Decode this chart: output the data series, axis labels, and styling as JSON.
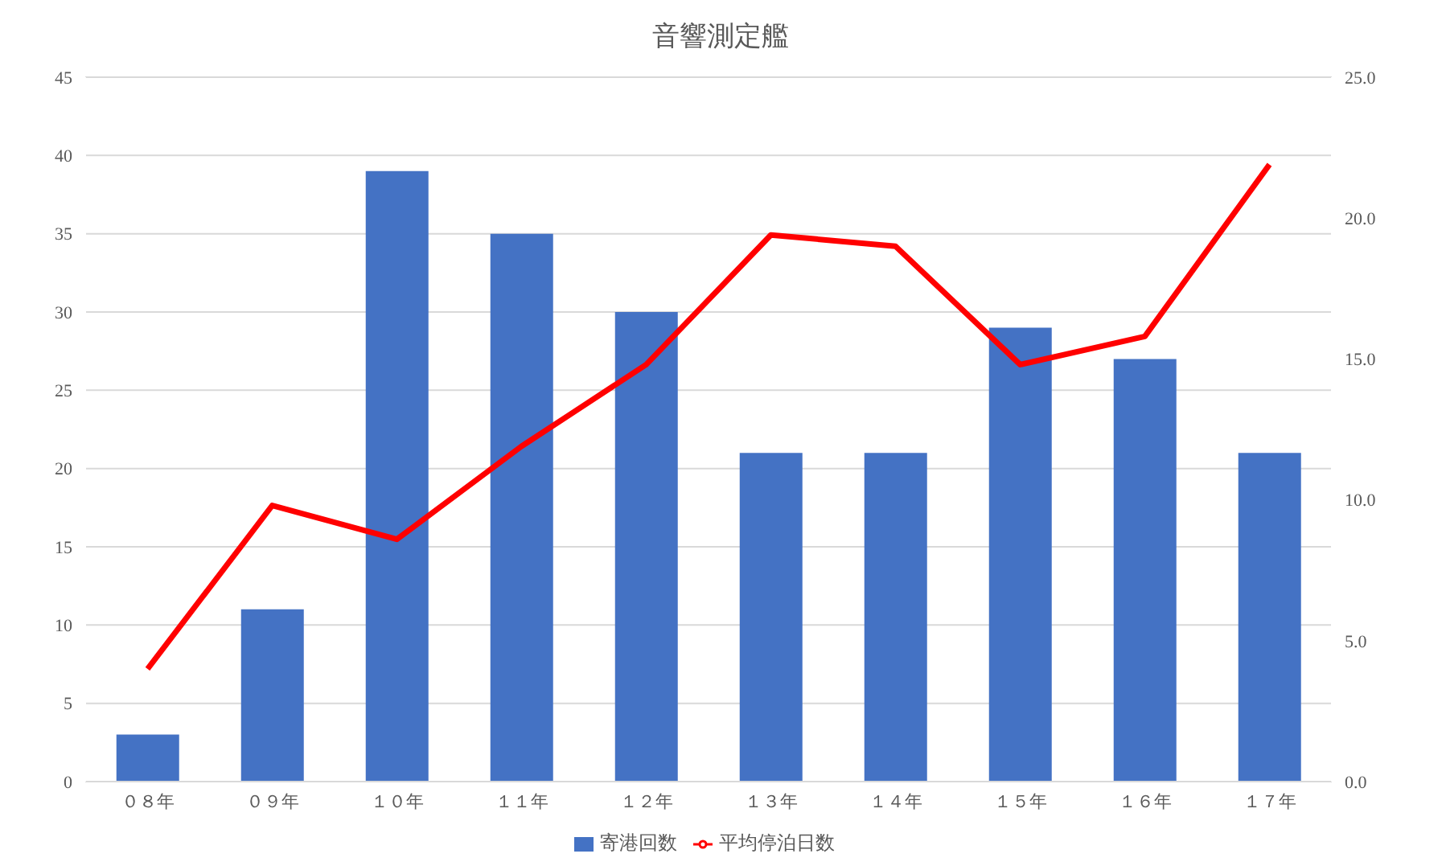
{
  "chart_data": {
    "type": "bar",
    "title": "音響測定艦",
    "categories": [
      "０８年",
      "０９年",
      "１０年",
      "１１年",
      "１２年",
      "１３年",
      "１４年",
      "１５年",
      "１６年",
      "１７年"
    ],
    "series": [
      {
        "name": "寄港回数",
        "color": "#4472c4",
        "values": [
          3,
          11,
          39,
          35,
          30,
          21,
          21,
          29,
          27,
          21
        ]
      },
      {
        "name": "平均停泊日数",
        "type": "line",
        "axis": "y2",
        "color": "#ff0000",
        "values": [
          4.0,
          9.8,
          8.6,
          11.9,
          14.8,
          19.4,
          19.0,
          14.8,
          15.8,
          21.9
        ]
      }
    ],
    "ylim": [
      0,
      45
    ],
    "yticks": [
      0,
      5,
      10,
      15,
      20,
      25,
      30,
      35,
      40,
      45
    ],
    "y2lim": [
      0,
      25
    ],
    "y2ticks": [
      {
        "value": 0,
        "label": "0.0"
      },
      {
        "value": 5,
        "label": "5.0"
      },
      {
        "value": 10,
        "label": "10.0"
      },
      {
        "value": 15,
        "label": "15.0"
      },
      {
        "value": 20,
        "label": "20.0"
      },
      {
        "value": 25,
        "label": "25.0"
      }
    ],
    "grid": "y",
    "legend": "bottom",
    "marker": "none",
    "line_style": "solid"
  }
}
